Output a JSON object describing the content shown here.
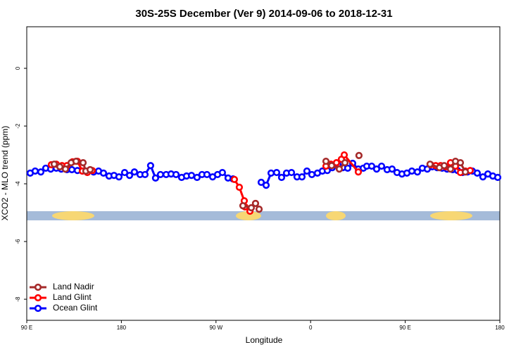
{
  "chart_data": {
    "type": "line",
    "title": "30S-25S December (Ver 9)   2014-09-06 to 2018-12-31",
    "x_label": "Longitude",
    "y_label": "XCO2 - MLO trend (ppm)",
    "xlim": [
      90,
      540
    ],
    "ylim": [
      -8.73,
      1.44
    ],
    "xticks": [
      {
        "value": 90,
        "label": "90 E"
      },
      180,
      {
        "value": 270,
        "label": "90 W"
      },
      {
        "value": 360,
        "label": "0"
      },
      {
        "value": 450,
        "label": "90 E"
      },
      {
        "value": 540,
        "label": "180"
      }
    ],
    "yticks": [
      0,
      -2,
      -4,
      -6,
      -8
    ],
    "legend": "lower left",
    "series": [
      {
        "name": "Land Nadir",
        "color": "#a52a2a",
        "x": [
          116.1,
          121.5,
          126.8,
          132.2,
          136.9,
          143.6,
          146.2,
          150.3,
          200,
          295.6,
          303.6,
          307.6,
          311.0,
          340,
          374.6,
          380.0,
          387.3,
          392.7,
          400,
          406.0,
          440,
          473.6,
          482.5,
          487.1,
          493.1,
          497.8,
          502.5,
          507.2
        ],
        "values": [
          -3.32,
          -3.41,
          -3.49,
          -3.27,
          -3.22,
          -3.27,
          -3.56,
          -3.51,
          null,
          -4.76,
          -4.83,
          -4.68,
          -4.88,
          null,
          -3.22,
          -3.37,
          -3.49,
          -3.27,
          null,
          -3.02,
          null,
          -3.32,
          -3.44,
          -3.37,
          -3.49,
          -3.22,
          -3.27,
          -3.59
        ]
      },
      {
        "name": "Land Glint",
        "color": "#ff0000",
        "x": [
          113.4,
          118.1,
          123.5,
          128.2,
          133.5,
          138.2,
          142.9,
          147.6,
          152.3,
          200,
          287.5,
          292.2,
          296.9,
          297.6,
          302.3,
          307.6,
          340,
          374.6,
          379.3,
          384.6,
          389.3,
          392.0,
          405.4,
          440,
          474.3,
          479.0,
          483.7,
          488.4,
          493.1,
          497.8,
          502.5,
          507.2,
          511.8
        ],
        "values": [
          -3.34,
          -3.32,
          -3.37,
          -3.37,
          -3.24,
          -3.22,
          -3.56,
          -3.61,
          -3.54,
          null,
          -3.85,
          -4.12,
          -4.59,
          -4.8,
          -4.95,
          -4.68,
          null,
          -3.39,
          -3.32,
          -3.27,
          -3.15,
          -3.0,
          -3.59,
          null,
          -3.34,
          -3.37,
          -3.37,
          -3.41,
          -3.27,
          -3.39,
          -3.61,
          -3.56,
          -3.54
        ]
      },
      {
        "name": "Ocean Glint",
        "color": "#0000ff",
        "x": [
          93.3,
          98.0,
          103.4,
          108.1,
          112.8,
          118.1,
          122.8,
          128.2,
          132.9,
          138.2,
          142.9,
          148.3,
          153.6,
          158.3,
          163.0,
          168.3,
          173.0,
          177.7,
          183.1,
          187.8,
          192.4,
          197.8,
          202.5,
          207.8,
          212.5,
          217.2,
          222.6,
          227.3,
          232.0,
          237.3,
          242.0,
          246.7,
          252.0,
          256.7,
          261.4,
          266.8,
          271.5,
          276.1,
          281.5,
          286.2,
          300,
          313.0,
          317.7,
          322.4,
          327.7,
          332.4,
          337.1,
          341.8,
          347.1,
          351.8,
          356.5,
          361.2,
          366.5,
          371.2,
          375.9,
          380.6,
          386.0,
          390.6,
          395.3,
          400.0,
          405.4,
          410.1,
          413.4,
          418.1,
          422.8,
          427.5,
          432.8,
          437.5,
          442.2,
          446.9,
          451.6,
          456.3,
          461.6,
          466.3,
          471.0,
          475.7,
          480.4,
          485.1,
          489.8,
          495.1,
          499.8,
          504.5,
          509.2,
          513.9,
          518.5,
          523.9,
          528.6,
          533.3,
          538.0
        ],
        "values": [
          -3.63,
          -3.56,
          -3.59,
          -3.46,
          -3.49,
          -3.46,
          -3.49,
          -3.51,
          -3.51,
          -3.54,
          -3.56,
          -3.56,
          -3.59,
          -3.56,
          -3.63,
          -3.73,
          -3.71,
          -3.76,
          -3.61,
          -3.71,
          -3.59,
          -3.68,
          -3.68,
          -3.37,
          -3.8,
          -3.68,
          -3.68,
          -3.66,
          -3.68,
          -3.78,
          -3.73,
          -3.71,
          -3.78,
          -3.68,
          -3.68,
          -3.76,
          -3.68,
          -3.61,
          -3.8,
          -3.83,
          null,
          -3.95,
          -4.05,
          -3.63,
          -3.61,
          -3.78,
          -3.63,
          -3.61,
          -3.76,
          -3.76,
          -3.56,
          -3.68,
          -3.63,
          -3.56,
          -3.54,
          -3.44,
          -3.34,
          -3.44,
          -3.46,
          -3.29,
          -3.49,
          -3.46,
          -3.39,
          -3.39,
          -3.49,
          -3.39,
          -3.51,
          -3.49,
          -3.61,
          -3.66,
          -3.63,
          -3.56,
          -3.59,
          -3.46,
          -3.49,
          -3.41,
          -3.44,
          -3.46,
          -3.49,
          -3.51,
          -3.54,
          -3.61,
          -3.59,
          -3.56,
          -3.63,
          -3.76,
          -3.66,
          -3.73,
          -3.78
        ]
      }
    ]
  }
}
